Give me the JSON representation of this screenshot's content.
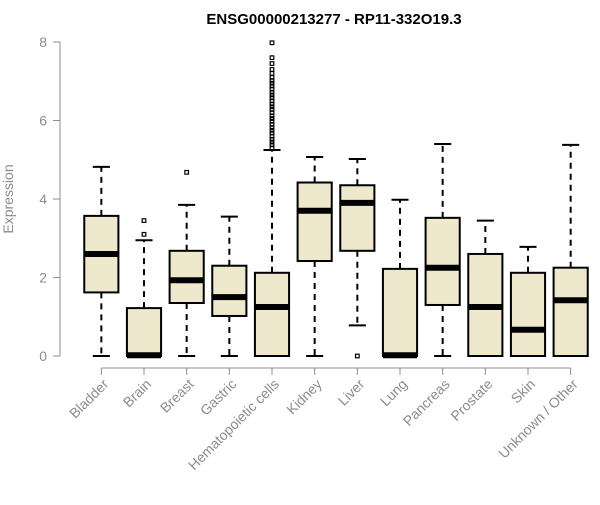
{
  "chart_data": {
    "type": "box",
    "title": "ENSG00000213277 - RP11-332O19.3",
    "xlabel": "",
    "ylabel": "Expression",
    "ylim": [
      0,
      8
    ],
    "yticks": [
      0,
      2,
      4,
      6,
      8
    ],
    "box_fill": "#EEE8CD",
    "box_stroke": "#000000",
    "axis_color": "#8c8c8c",
    "categories": [
      "Bladder",
      "Brain",
      "Breast",
      "Gastric",
      "Hematopoietic cells",
      "Kidney",
      "Liver",
      "Lung",
      "Pancreas",
      "Prostate",
      "Skin",
      "Unknown / Other"
    ],
    "boxes": [
      {
        "whisker_low": 0,
        "q1": 1.62,
        "median": 2.6,
        "q3": 3.57,
        "whisker_high": 4.82,
        "outliers": []
      },
      {
        "whisker_low": 0,
        "q1": 0,
        "median": 0.02,
        "q3": 1.22,
        "whisker_high": 2.95,
        "outliers": [
          3.1,
          3.45
        ]
      },
      {
        "whisker_low": 0,
        "q1": 1.35,
        "median": 1.93,
        "q3": 2.68,
        "whisker_high": 3.85,
        "outliers": [
          4.68
        ]
      },
      {
        "whisker_low": 0,
        "q1": 1.02,
        "median": 1.5,
        "q3": 2.3,
        "whisker_high": 3.55,
        "outliers": []
      },
      {
        "whisker_low": 0,
        "q1": 0,
        "median": 1.25,
        "q3": 2.12,
        "whisker_high": 5.25,
        "outliers": [
          5.3,
          5.38,
          5.45,
          5.52,
          5.6,
          5.68,
          5.75,
          5.82,
          5.9,
          5.98,
          6.05,
          6.12,
          6.2,
          6.28,
          6.35,
          6.42,
          6.5,
          6.58,
          6.65,
          6.72,
          6.8,
          6.88,
          6.95,
          7.02,
          7.1,
          7.2,
          7.3,
          7.45,
          7.6,
          7.98
        ]
      },
      {
        "whisker_low": 0,
        "q1": 2.42,
        "median": 3.7,
        "q3": 4.42,
        "whisker_high": 5.07,
        "outliers": []
      },
      {
        "whisker_low": 0.78,
        "q1": 2.68,
        "median": 3.9,
        "q3": 4.35,
        "whisker_high": 5.02,
        "outliers": [
          0
        ]
      },
      {
        "whisker_low": 0,
        "q1": 0,
        "median": 0.02,
        "q3": 2.22,
        "whisker_high": 3.98,
        "outliers": []
      },
      {
        "whisker_low": 0,
        "q1": 1.3,
        "median": 2.25,
        "q3": 3.52,
        "whisker_high": 5.4,
        "outliers": []
      },
      {
        "whisker_low": 0,
        "q1": 0,
        "median": 1.25,
        "q3": 2.6,
        "whisker_high": 3.45,
        "outliers": []
      },
      {
        "whisker_low": 0,
        "q1": 0,
        "median": 0.67,
        "q3": 2.12,
        "whisker_high": 2.78,
        "outliers": []
      },
      {
        "whisker_low": 0,
        "q1": 0,
        "median": 1.42,
        "q3": 2.25,
        "whisker_high": 5.38,
        "outliers": []
      }
    ]
  }
}
